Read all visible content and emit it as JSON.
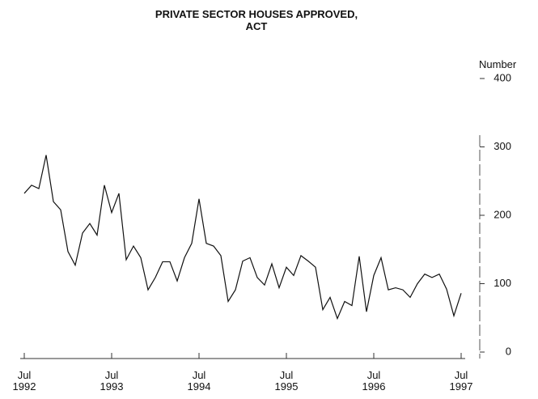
{
  "chart_data": {
    "type": "line",
    "title": "PRIVATE SECTOR HOUSES APPROVED, ACT",
    "y_label": "Number",
    "categories": [
      "Jul 1992",
      null,
      null,
      null,
      null,
      null,
      null,
      null,
      null,
      null,
      null,
      null,
      "Jul 1993",
      null,
      null,
      null,
      null,
      null,
      null,
      null,
      null,
      null,
      null,
      null,
      "Jul 1994",
      null,
      null,
      null,
      null,
      null,
      null,
      null,
      null,
      null,
      null,
      null,
      "Jul 1995",
      null,
      null,
      null,
      null,
      null,
      null,
      null,
      null,
      null,
      null,
      null,
      "Jul 1996",
      null,
      null,
      null,
      null,
      null,
      null,
      null,
      null,
      null,
      null,
      null,
      "Jul 1997"
    ],
    "series": [
      {
        "name": "Private sector houses approved",
        "color": "#111111",
        "values": [
          232,
          244,
          239,
          288,
          220,
          208,
          147,
          127,
          174,
          188,
          171,
          244,
          204,
          232,
          135,
          155,
          138,
          91,
          109,
          132,
          132,
          104,
          138,
          159,
          224,
          159,
          155,
          141,
          74,
          91,
          133,
          138,
          109,
          98,
          129,
          94,
          124,
          112,
          141,
          133,
          124,
          62,
          80,
          49,
          74,
          68,
          140,
          59,
          112,
          138,
          91,
          94,
          91,
          80,
          100,
          114,
          109,
          114,
          92,
          53,
          86
        ]
      }
    ],
    "ylim": [
      0,
      400
    ],
    "yticks": [
      0,
      100,
      200,
      300,
      400
    ]
  }
}
